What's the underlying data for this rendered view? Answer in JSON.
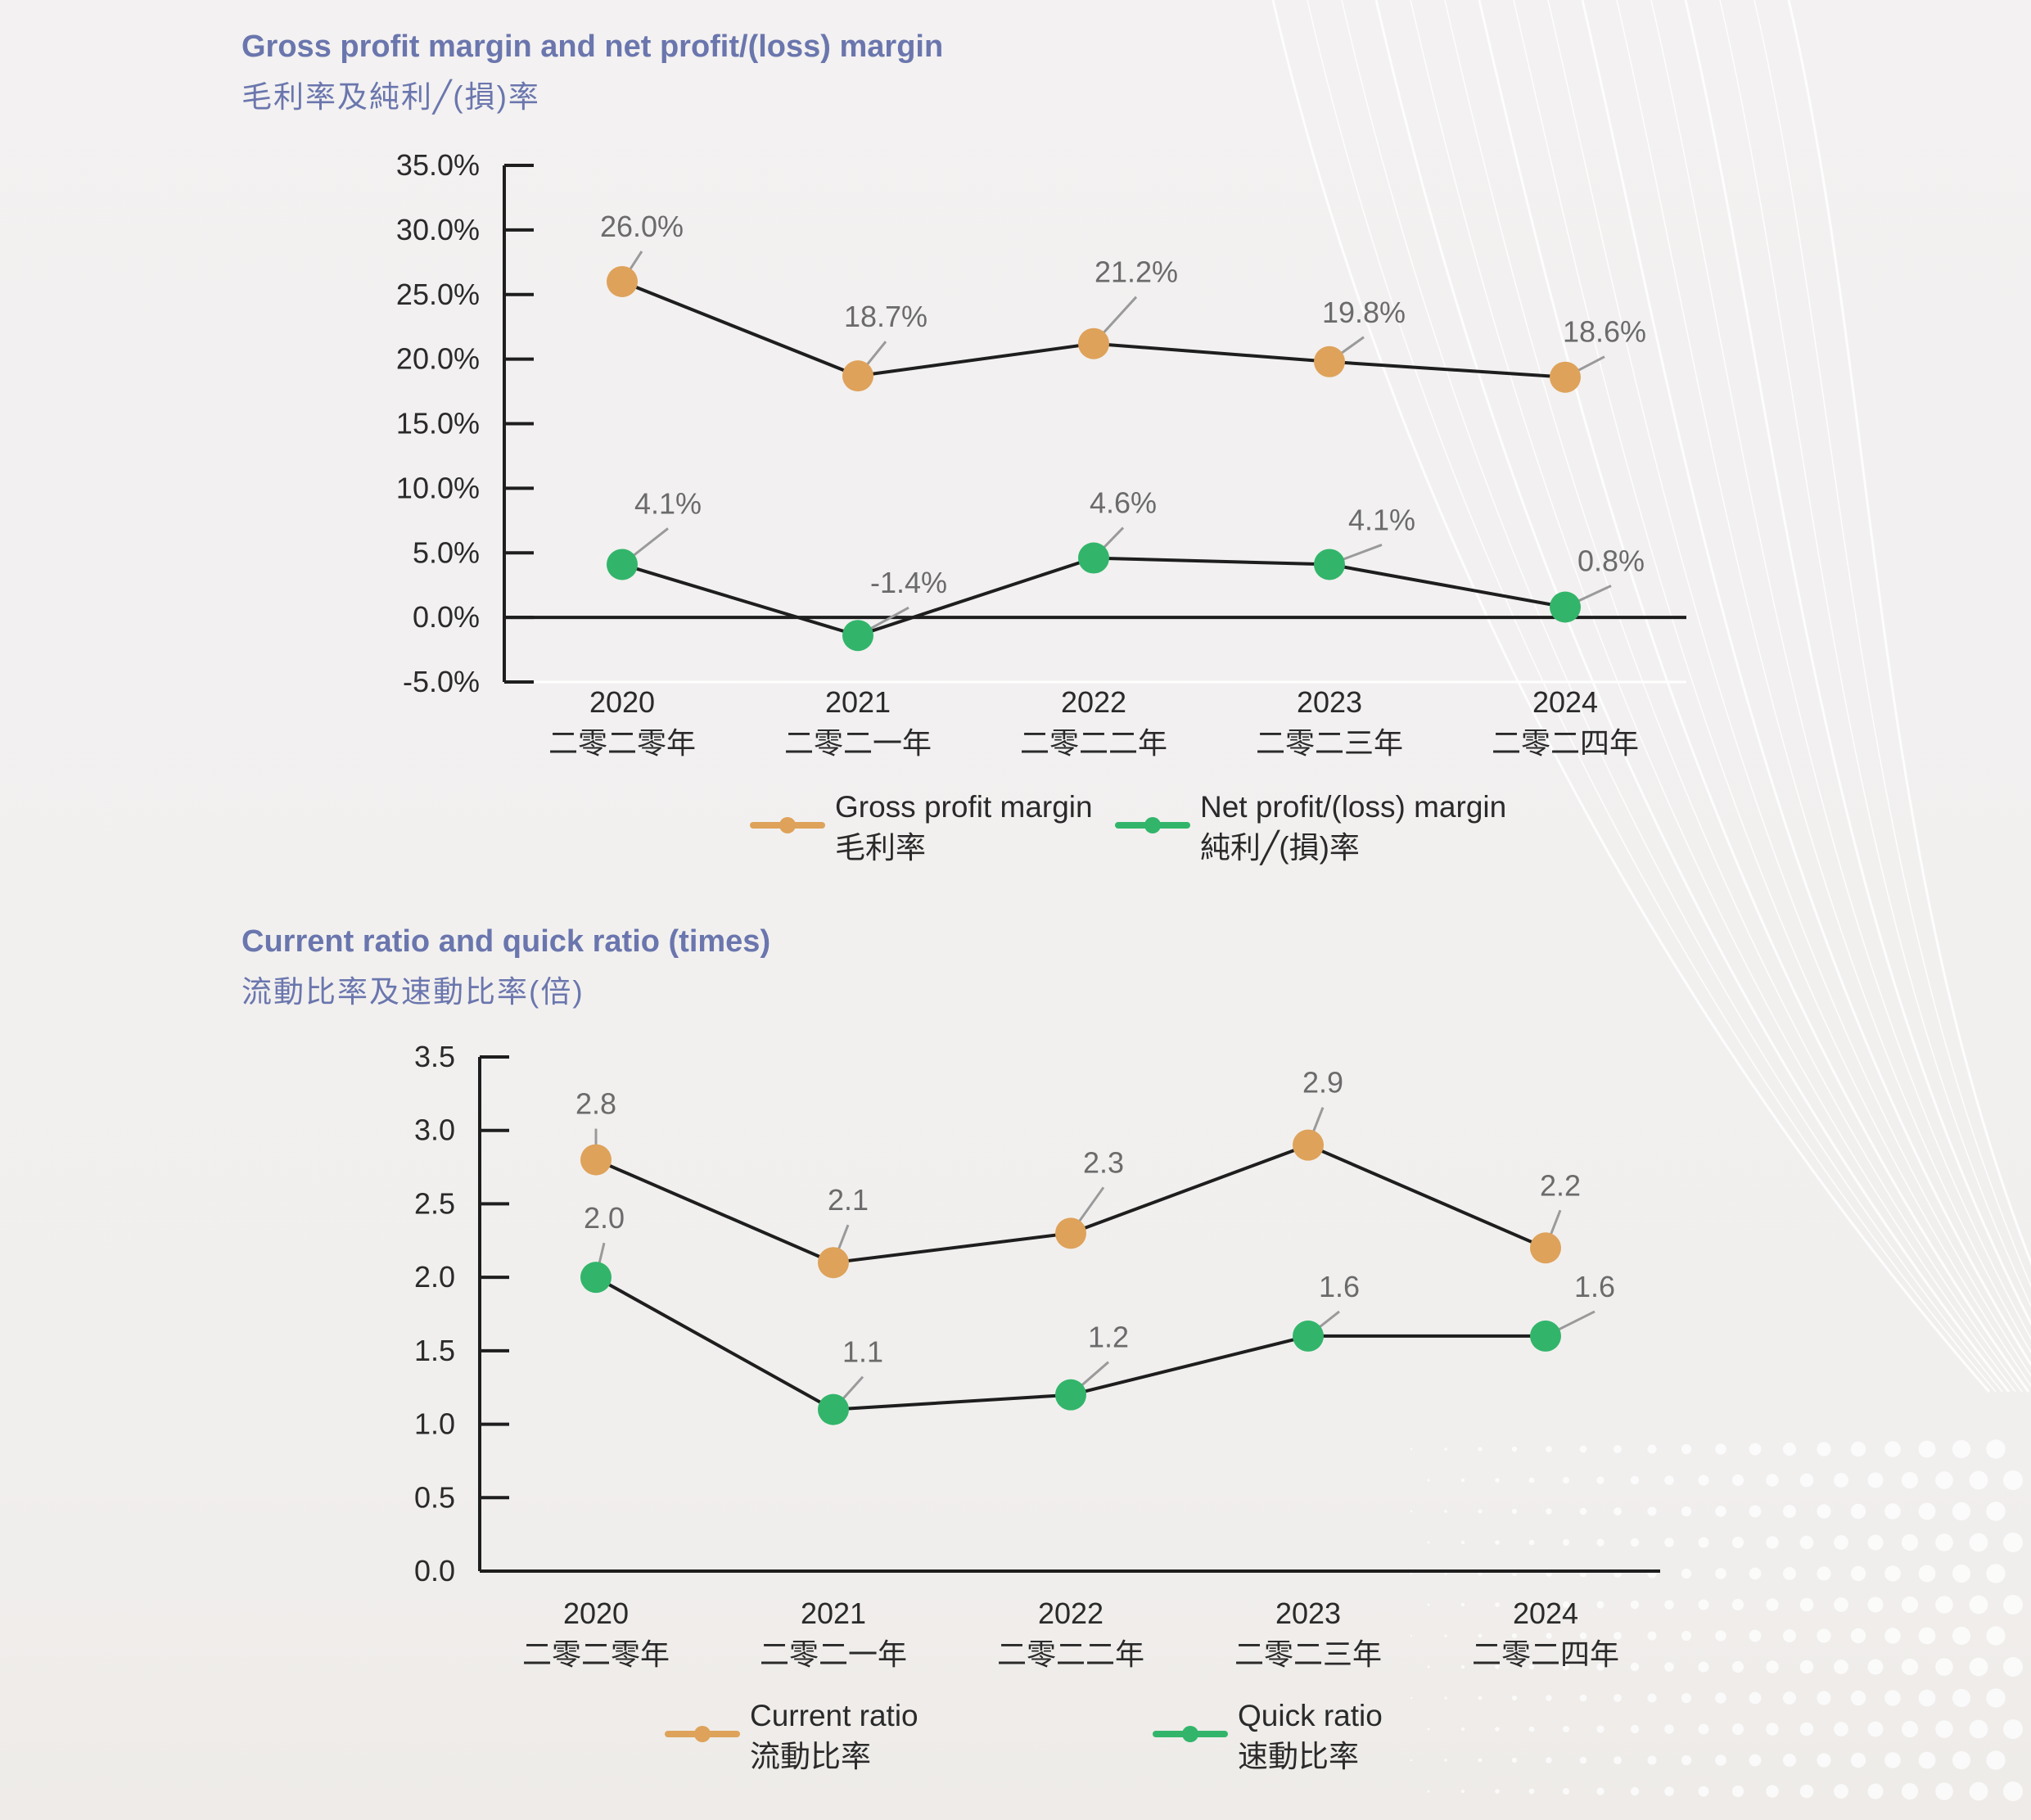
{
  "colors": {
    "title": "#6a76ad",
    "orange": "#dea25a",
    "green": "#32b56a",
    "line": "#1e1e1e",
    "leader": "#9a9a9a"
  },
  "chart_data": [
    {
      "type": "line",
      "title": "Gross profit margin and net profit/(loss) margin",
      "subtitle": "毛利率及純利╱(損)率",
      "categories": [
        "2020",
        "2021",
        "2022",
        "2023",
        "2024"
      ],
      "categories_zh": [
        "二零二零年",
        "二零二一年",
        "二零二二年",
        "二零二三年",
        "二零二四年"
      ],
      "ylim": [
        -5,
        35
      ],
      "ytick_step": 5,
      "ytick_labels": [
        "-5.0%",
        "0.0%",
        "5.0%",
        "10.0%",
        "15.0%",
        "20.0%",
        "25.0%",
        "30.0%",
        "35.0%"
      ],
      "grid": false,
      "legend_position": "bottom-center",
      "series": [
        {
          "name": "Gross profit margin",
          "name_zh": "毛利率",
          "color": "orange",
          "values": [
            26.0,
            18.7,
            21.2,
            19.8,
            18.6
          ],
          "labels": [
            "26.0%",
            "18.7%",
            "21.2%",
            "19.8%",
            "18.6%"
          ]
        },
        {
          "name": "Net profit/(loss) margin",
          "name_zh": "純利╱(損)率",
          "color": "green",
          "values": [
            4.1,
            -1.4,
            4.6,
            4.1,
            0.8
          ],
          "labels": [
            "4.1%",
            "-1.4%",
            "4.6%",
            "4.1%",
            "0.8%"
          ]
        }
      ]
    },
    {
      "type": "line",
      "title": "Current ratio and quick ratio (times)",
      "subtitle": "流動比率及速動比率(倍)",
      "categories": [
        "2020",
        "2021",
        "2022",
        "2023",
        "2024"
      ],
      "categories_zh": [
        "二零二零年",
        "二零二一年",
        "二零二二年",
        "二零二三年",
        "二零二四年"
      ],
      "ylim": [
        0,
        3.5
      ],
      "ytick_step": 0.5,
      "ytick_labels": [
        "0.0",
        "0.5",
        "1.0",
        "1.5",
        "2.0",
        "2.5",
        "3.0",
        "3.5"
      ],
      "grid": false,
      "legend_position": "bottom-center",
      "series": [
        {
          "name": "Current ratio",
          "name_zh": "流動比率",
          "color": "orange",
          "values": [
            2.8,
            2.1,
            2.3,
            2.9,
            2.2
          ],
          "labels": [
            "2.8",
            "2.1",
            "2.3",
            "2.9",
            "2.2"
          ]
        },
        {
          "name": "Quick ratio",
          "name_zh": "速動比率",
          "color": "green",
          "values": [
            2.0,
            1.1,
            1.2,
            1.6,
            1.6
          ],
          "labels": [
            "2.0",
            "1.1",
            "1.2",
            "1.6",
            "1.6"
          ]
        }
      ]
    }
  ]
}
